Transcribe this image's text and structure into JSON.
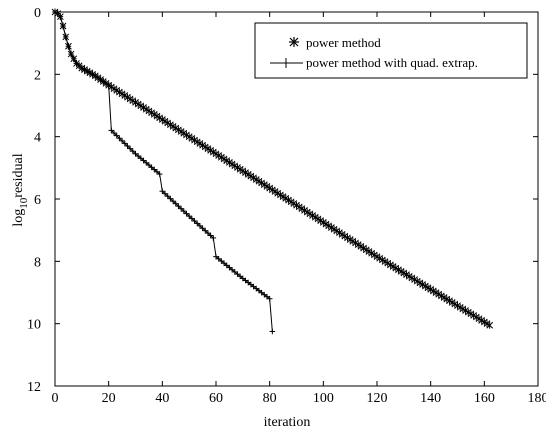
{
  "chart_data": {
    "type": "line",
    "xlabel": "iteration",
    "ylabel": {
      "base": "log",
      "sub": "10",
      "rest": "residual"
    },
    "xlim": [
      0,
      180
    ],
    "ylim": [
      0,
      12
    ],
    "y_inverted": true,
    "grid": false,
    "legend_position": "top-right",
    "x_ticks": [
      "0",
      "20",
      "40",
      "60",
      "80",
      "100",
      "120",
      "140",
      "160",
      "180"
    ],
    "y_ticks": [
      "0",
      "2",
      "4",
      "6",
      "8",
      "10",
      "12"
    ],
    "series": [
      {
        "name": "power method",
        "marker": "asterisk",
        "color": "#000000",
        "points": [
          [
            0,
            0
          ],
          [
            1,
            0.05
          ],
          [
            2,
            0.15
          ],
          [
            3,
            0.45
          ],
          [
            4,
            0.8
          ],
          [
            5,
            1.1
          ],
          [
            6,
            1.35
          ],
          [
            7,
            1.5
          ],
          [
            8,
            1.65
          ],
          [
            10,
            1.8
          ],
          [
            15,
            2.05
          ],
          [
            20,
            2.35
          ],
          [
            40,
            3.45
          ],
          [
            60,
            4.55
          ],
          [
            80,
            5.65
          ],
          [
            100,
            6.75
          ],
          [
            120,
            7.85
          ],
          [
            140,
            8.9
          ],
          [
            162,
            10.05
          ]
        ]
      },
      {
        "name": "power method with quad. extrap.",
        "marker": "plus",
        "color": "#000000",
        "points": [
          [
            0,
            0
          ],
          [
            1,
            0.05
          ],
          [
            2,
            0.15
          ],
          [
            3,
            0.45
          ],
          [
            4,
            0.8
          ],
          [
            5,
            1.1
          ],
          [
            6,
            1.35
          ],
          [
            7,
            1.5
          ],
          [
            8,
            1.65
          ],
          [
            10,
            1.8
          ],
          [
            15,
            2.05
          ],
          [
            20,
            2.35
          ],
          [
            21,
            3.8
          ],
          [
            30,
            4.55
          ],
          [
            39,
            5.2
          ],
          [
            40,
            5.75
          ],
          [
            50,
            6.55
          ],
          [
            59,
            7.25
          ],
          [
            60,
            7.85
          ],
          [
            70,
            8.55
          ],
          [
            80,
            9.2
          ],
          [
            81,
            10.25
          ]
        ]
      }
    ]
  }
}
